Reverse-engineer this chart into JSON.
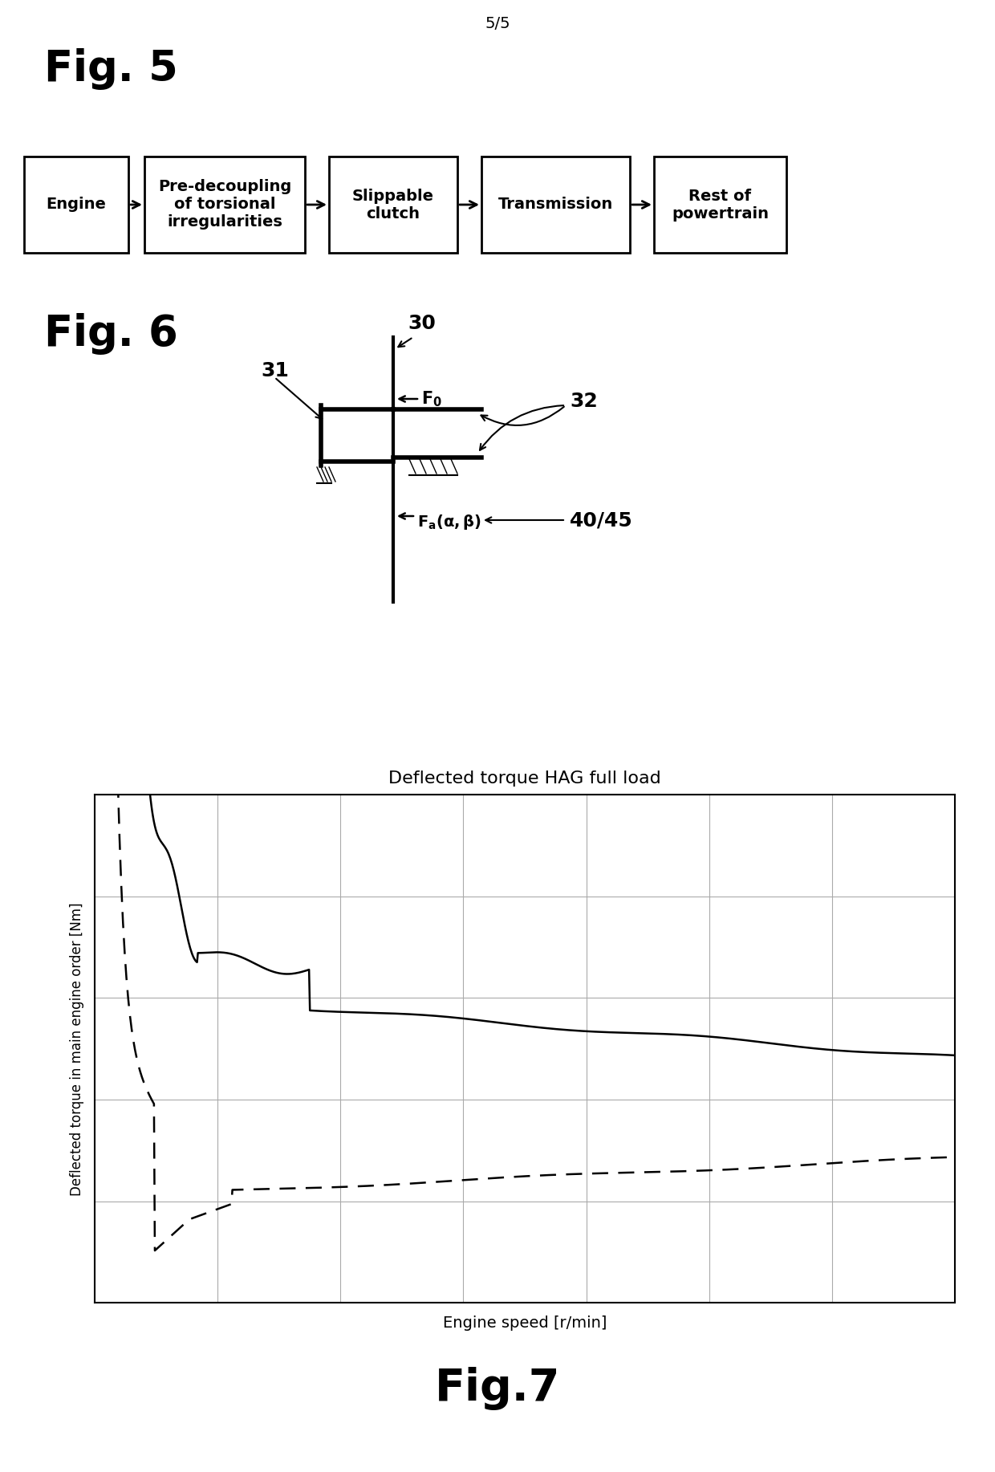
{
  "fig5_label": "Fig. 5",
  "fig6_label": "Fig. 6",
  "fig7_label": "Fig.7",
  "page_label": "5/5",
  "flowchart_boxes": [
    "Engine",
    "Pre-decoupling\nof torsional\nirregularities",
    "Slippable\nclutch",
    "Transmission",
    "Rest of\npowertrain"
  ],
  "chart_title": "Deflected torque HAG full load",
  "chart_xlabel": "Engine speed [r/min]",
  "chart_ylabel": "Deflected torque in main engine order [Nm]",
  "background_color": "#ffffff",
  "text_color": "#000000"
}
